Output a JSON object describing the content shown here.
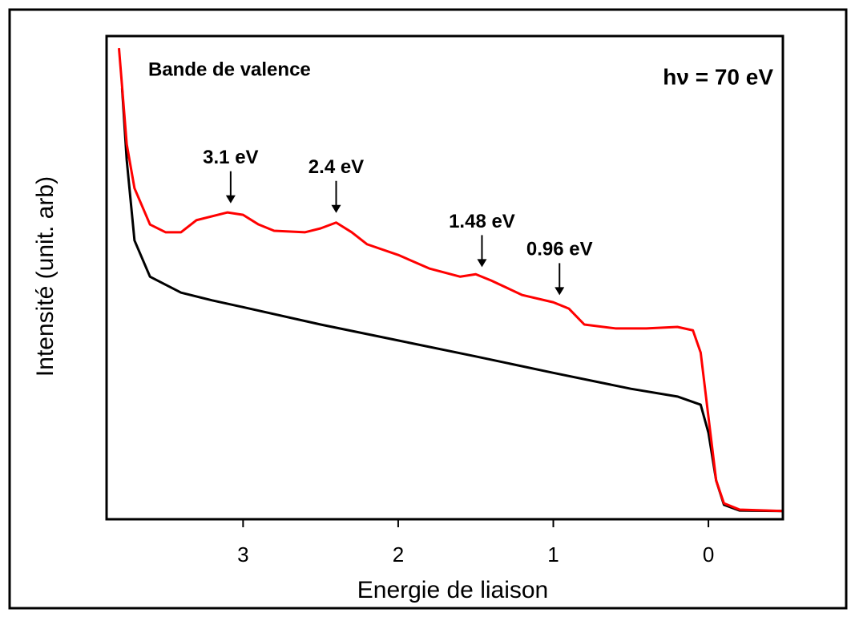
{
  "chart_data": {
    "type": "line",
    "title": "Bande de valence",
    "subtitle": "hν = 70 eV",
    "xlabel": "Energie de liaison",
    "ylabel": "Intensité (unit. arb)",
    "xlim": [
      3.88,
      -0.48
    ],
    "xticks": [
      3,
      2,
      1,
      0
    ],
    "ylim": [
      0,
      100
    ],
    "series": [
      {
        "name": "black",
        "color": "#000000",
        "x": [
          3.78,
          3.75,
          3.7,
          3.6,
          3.4,
          3.2,
          3.0,
          2.5,
          2.0,
          1.5,
          1.0,
          0.5,
          0.2,
          0.05,
          0.0,
          -0.05,
          -0.1,
          -0.2,
          -0.48
        ],
        "values": [
          89.2,
          74.3,
          57.7,
          50.2,
          46.9,
          45.3,
          43.9,
          40.3,
          37,
          33.7,
          30.3,
          27,
          25.4,
          23.7,
          17.9,
          8,
          3,
          1.8,
          1.7
        ]
      },
      {
        "name": "red",
        "color": "#ff0000",
        "x": [
          3.8,
          3.75,
          3.7,
          3.6,
          3.5,
          3.4,
          3.3,
          3.1,
          3.0,
          2.9,
          2.8,
          2.6,
          2.5,
          2.4,
          2.3,
          2.2,
          2.0,
          1.8,
          1.6,
          1.5,
          1.4,
          1.2,
          1.0,
          0.9,
          0.8,
          0.6,
          0.4,
          0.2,
          0.1,
          0.05,
          0.0,
          -0.05,
          -0.1,
          -0.2,
          -0.48
        ],
        "values": [
          97.5,
          77.6,
          68.5,
          61,
          59.4,
          59.4,
          61.9,
          63.5,
          63,
          61,
          59.7,
          59.4,
          60.2,
          61.4,
          59.4,
          56.9,
          54.7,
          51.9,
          50.2,
          50.7,
          49.4,
          46.4,
          44.9,
          43.6,
          40.3,
          39.5,
          39.5,
          39.8,
          39.1,
          34.5,
          21.2,
          8,
          3.3,
          2,
          1.7
        ]
      }
    ],
    "annotations": [
      {
        "text": "3.1 eV",
        "x": 3.08
      },
      {
        "text": "2.4 eV",
        "x": 2.4
      },
      {
        "text": "1.48 eV",
        "x": 1.46
      },
      {
        "text": "0.96 eV",
        "x": 0.96
      }
    ]
  }
}
